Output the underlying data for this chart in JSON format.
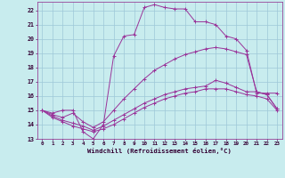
{
  "xlabel": "Windchill (Refroidissement éolien,°C)",
  "bg_color": "#c8ecee",
  "grid_color": "#9ec8d8",
  "line_color": "#993399",
  "xlim": [
    -0.5,
    23.5
  ],
  "ylim": [
    13,
    22.6
  ],
  "yticks": [
    13,
    14,
    15,
    16,
    17,
    18,
    19,
    20,
    21,
    22
  ],
  "xticks": [
    0,
    1,
    2,
    3,
    4,
    5,
    6,
    7,
    8,
    9,
    10,
    11,
    12,
    13,
    14,
    15,
    16,
    17,
    18,
    19,
    20,
    21,
    22,
    23
  ],
  "series": [
    {
      "x": [
        0,
        1,
        2,
        3,
        4,
        5,
        6,
        7,
        8,
        9,
        10,
        11,
        12,
        13,
        14,
        15,
        16,
        17,
        18,
        19,
        20,
        21,
        22,
        23
      ],
      "y": [
        15,
        14.8,
        15.0,
        15.0,
        13.5,
        13.0,
        14.0,
        18.8,
        20.2,
        20.3,
        22.2,
        22.4,
        22.2,
        22.1,
        22.1,
        21.2,
        21.2,
        21.0,
        20.2,
        20.0,
        19.2,
        16.2,
        16.2,
        16.2
      ]
    },
    {
      "x": [
        0,
        1,
        2,
        3,
        4,
        5,
        6,
        7,
        8,
        9,
        10,
        11,
        12,
        13,
        14,
        15,
        16,
        17,
        18,
        19,
        20,
        21,
        22,
        23
      ],
      "y": [
        15,
        14.7,
        14.5,
        14.8,
        14.2,
        13.8,
        14.2,
        15.0,
        15.8,
        16.5,
        17.2,
        17.8,
        18.2,
        18.6,
        18.9,
        19.1,
        19.3,
        19.4,
        19.3,
        19.1,
        18.9,
        16.3,
        16.1,
        15.1
      ]
    },
    {
      "x": [
        0,
        1,
        2,
        3,
        4,
        5,
        6,
        7,
        8,
        9,
        10,
        11,
        12,
        13,
        14,
        15,
        16,
        17,
        18,
        19,
        20,
        21,
        22,
        23
      ],
      "y": [
        15,
        14.6,
        14.3,
        14.1,
        13.9,
        13.6,
        13.9,
        14.3,
        14.7,
        15.1,
        15.5,
        15.8,
        16.1,
        16.3,
        16.5,
        16.6,
        16.7,
        17.1,
        16.9,
        16.6,
        16.3,
        16.3,
        16.1,
        15.1
      ]
    },
    {
      "x": [
        0,
        1,
        2,
        3,
        4,
        5,
        6,
        7,
        8,
        9,
        10,
        11,
        12,
        13,
        14,
        15,
        16,
        17,
        18,
        19,
        20,
        21,
        22,
        23
      ],
      "y": [
        15,
        14.5,
        14.2,
        13.9,
        13.7,
        13.5,
        13.7,
        14.0,
        14.4,
        14.8,
        15.2,
        15.5,
        15.8,
        16.0,
        16.2,
        16.3,
        16.5,
        16.5,
        16.5,
        16.3,
        16.1,
        16.0,
        15.8,
        15.0
      ]
    }
  ]
}
